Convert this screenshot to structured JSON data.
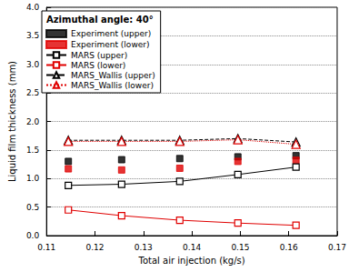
{
  "chart_data": {
    "type": "line",
    "title": "Azimuthal angle: 40°",
    "x_label": "Total air injection (kg/s)",
    "y_label": "Liquid film thickness (mm)",
    "x": [
      0.1145,
      0.1255,
      0.1375,
      0.1495,
      0.1615
    ],
    "series": [
      {
        "name": "Experiment (upper)",
        "type": "scatter",
        "color": "#000000",
        "marker": "square_filled",
        "values": [
          1.3,
          1.33,
          1.35,
          1.38,
          1.4
        ]
      },
      {
        "name": "Experiment (lower)",
        "type": "scatter",
        "color": "#e00000",
        "marker": "square_filled",
        "values": [
          1.17,
          1.15,
          1.18,
          1.3,
          1.32
        ]
      },
      {
        "name": "MARS (upper)",
        "type": "line",
        "color": "#000000",
        "marker": "square_open",
        "line_style": "solid",
        "values": [
          0.88,
          0.9,
          0.95,
          1.07,
          1.2
        ]
      },
      {
        "name": "MARS (lower)",
        "type": "line",
        "color": "#e00000",
        "marker": "square_open",
        "line_style": "solid",
        "values": [
          0.45,
          0.35,
          0.27,
          0.22,
          0.18
        ]
      },
      {
        "name": "MARS_Wallis (upper)",
        "type": "line",
        "color": "#000000",
        "marker": "triangle_open",
        "line_style": "dashed",
        "values": [
          1.67,
          1.67,
          1.67,
          1.7,
          1.64
        ]
      },
      {
        "name": "MARS_Wallis (lower)",
        "type": "line",
        "color": "#e00000",
        "marker": "triangle_open",
        "line_style": "dotted",
        "values": [
          1.65,
          1.65,
          1.65,
          1.68,
          1.6
        ]
      }
    ],
    "xlim": [
      0.11,
      0.17
    ],
    "xticks": [
      0.11,
      0.12,
      0.13,
      0.14,
      0.15,
      0.16,
      0.17
    ],
    "ylim": [
      0,
      4
    ],
    "yticks": [
      {
        "value": 0,
        "label": "0.0"
      },
      0.5,
      {
        "value": 1,
        "label": "1.0"
      },
      1.5,
      {
        "value": 2,
        "label": "2.0"
      },
      2.5,
      {
        "value": 3,
        "label": "3.0"
      },
      3.5,
      {
        "value": 4,
        "label": "4.0"
      }
    ],
    "grid": true,
    "legend": "upper left"
  }
}
